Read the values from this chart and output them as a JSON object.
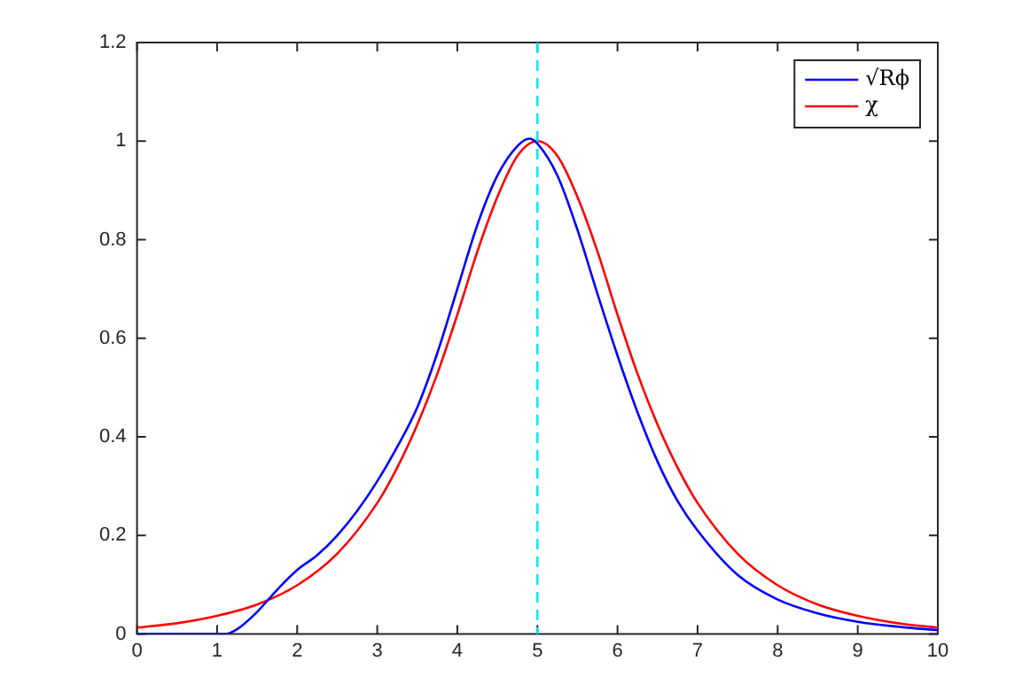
{
  "chart_data": {
    "type": "line",
    "xlim": [
      0,
      10
    ],
    "ylim": [
      0,
      1.2
    ],
    "xticks": [
      0,
      1,
      2,
      3,
      4,
      5,
      6,
      7,
      8,
      9,
      10
    ],
    "yticks": [
      0,
      0.2,
      0.4,
      0.6,
      0.8,
      1,
      1.2
    ],
    "grid": false,
    "legend": "top right",
    "marker": "none",
    "line_style": "solid",
    "series": [
      {
        "name": "√Rϕ",
        "color": "#0000ff",
        "x": [
          0,
          0.5,
          1,
          1.1,
          1.25,
          1.5,
          1.75,
          2,
          2.25,
          2.5,
          2.75,
          3,
          3.25,
          3.5,
          3.75,
          4,
          4.25,
          4.5,
          4.75,
          4.9,
          5,
          5.25,
          5.5,
          5.75,
          6,
          6.25,
          6.5,
          6.75,
          7,
          7.5,
          8,
          8.5,
          9,
          9.5,
          10
        ],
        "values": [
          0,
          0,
          0,
          0,
          0.01,
          0.045,
          0.09,
          0.13,
          0.16,
          0.2,
          0.25,
          0.31,
          0.38,
          0.46,
          0.57,
          0.7,
          0.83,
          0.93,
          0.99,
          1.005,
          0.995,
          0.93,
          0.82,
          0.69,
          0.565,
          0.45,
          0.35,
          0.27,
          0.21,
          0.12,
          0.07,
          0.042,
          0.025,
          0.015,
          0.008
        ]
      },
      {
        "name": "χ",
        "color": "#ff0000",
        "x": [
          0,
          0.5,
          1,
          1.5,
          2,
          2.5,
          3,
          3.25,
          3.5,
          3.75,
          4,
          4.25,
          4.5,
          4.75,
          5,
          5.25,
          5.5,
          5.75,
          6,
          6.25,
          6.5,
          6.75,
          7,
          7.5,
          8,
          8.5,
          9,
          9.5,
          10
        ],
        "values": [
          0.013,
          0.022,
          0.037,
          0.06,
          0.099,
          0.163,
          0.266,
          0.338,
          0.425,
          0.528,
          0.648,
          0.776,
          0.887,
          0.97,
          1,
          0.97,
          0.887,
          0.776,
          0.648,
          0.528,
          0.425,
          0.338,
          0.266,
          0.163,
          0.099,
          0.06,
          0.037,
          0.022,
          0.013
        ]
      }
    ],
    "ref_lines": [
      {
        "axis": "x",
        "value": 5,
        "color": "#00e5ee",
        "line_style": "dashed"
      }
    ]
  }
}
